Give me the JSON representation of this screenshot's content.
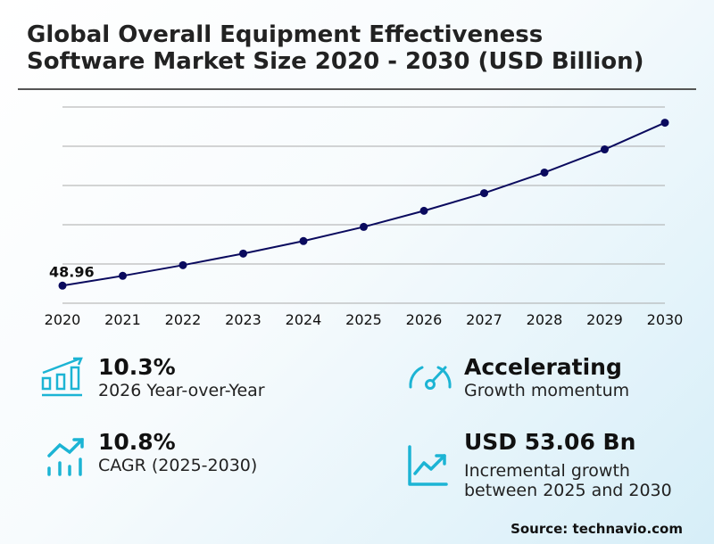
{
  "title": "Global Overall Equipment Effectiveness Software Market Size 2020 - 2030 (USD Billion)",
  "chart_data": {
    "type": "line",
    "title": "Global Overall Equipment Effectiveness Software Market Size 2020 - 2030 (USD Billion)",
    "categories": [
      "2020",
      "2021",
      "2022",
      "2023",
      "2024",
      "2025",
      "2026",
      "2027",
      "2028",
      "2029",
      "2030"
    ],
    "values": [
      48.96,
      53.95,
      59.4,
      65.3,
      71.7,
      78.9,
      87.1,
      96.1,
      106.6,
      118.4,
      132.0
    ],
    "data_labels": [
      "48.96"
    ],
    "ylim": [
      40,
      140
    ],
    "grid": true,
    "line_color": "#0a0a5e"
  },
  "stats": [
    {
      "value": "10.3%",
      "label": "2026 Year-over-Year",
      "icon": "bar-chart-growth-icon"
    },
    {
      "value": "Accelerating",
      "label": "Growth momentum",
      "icon": "speedometer-icon"
    },
    {
      "value": "10.8%",
      "label": "CAGR (2025-2030)",
      "icon": "trend-bars-icon"
    },
    {
      "value": "USD 53.06 Bn",
      "label": "Incremental growth between 2025 and 2030",
      "icon": "line-chart-icon"
    }
  ],
  "accent_color": "#1cb4d4",
  "source": "Source: technavio.com"
}
